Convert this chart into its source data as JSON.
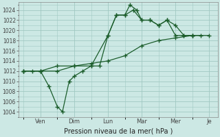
{
  "background_color": "#cce8e4",
  "grid_color": "#a0c8c2",
  "line_color": "#1a5c2a",
  "xlabel": "Pression niveau de la mer( hPa )",
  "ylim": [
    1003,
    1025.5
  ],
  "yticks": [
    1004,
    1006,
    1008,
    1010,
    1012,
    1014,
    1016,
    1018,
    1020,
    1022,
    1024
  ],
  "series": [
    {
      "x": [
        0,
        1,
        2,
        3,
        4,
        5,
        6,
        7,
        8,
        9,
        10,
        11
      ],
      "y": [
        1012,
        1012,
        1012,
        1013,
        1013.5,
        1014,
        1015,
        1017,
        1018,
        1018.5,
        1019,
        1019
      ]
    },
    {
      "x": [
        0,
        0.5,
        1.0,
        1.5,
        2.0,
        2.3,
        2.7,
        3.0,
        3.5,
        4.0,
        4.5,
        5.0,
        5.5,
        6.0,
        6.3,
        6.7,
        7.0,
        7.5,
        8.0,
        8.5,
        9.0,
        9.5,
        10.0
      ],
      "y": [
        1012,
        1012,
        1012,
        1009,
        1005,
        1004,
        1010,
        1011,
        1012,
        1013,
        1013,
        1019,
        1023,
        1023,
        1025,
        1024,
        1022,
        1022,
        1021,
        1022,
        1019,
        1019,
        1019
      ]
    },
    {
      "x": [
        0,
        1,
        2,
        3,
        4,
        5,
        5.5,
        6.0,
        6.5,
        7.0,
        7.5,
        8.0,
        8.5,
        9.0,
        9.5,
        10.0,
        10.5
      ],
      "y": [
        1012,
        1012,
        1013,
        1013,
        1013,
        1019,
        1023,
        1023,
        1024,
        1022,
        1022,
        1021,
        1022,
        1021,
        1019,
        1019,
        1019
      ]
    }
  ],
  "xtick_positions": [
    1,
    3,
    5,
    7,
    9,
    11
  ],
  "xtick_labels": [
    "Ven",
    "Dim",
    "Lun",
    "Mar",
    "Mer",
    "Je"
  ],
  "figsize": [
    3.2,
    2.0
  ],
  "dpi": 100
}
